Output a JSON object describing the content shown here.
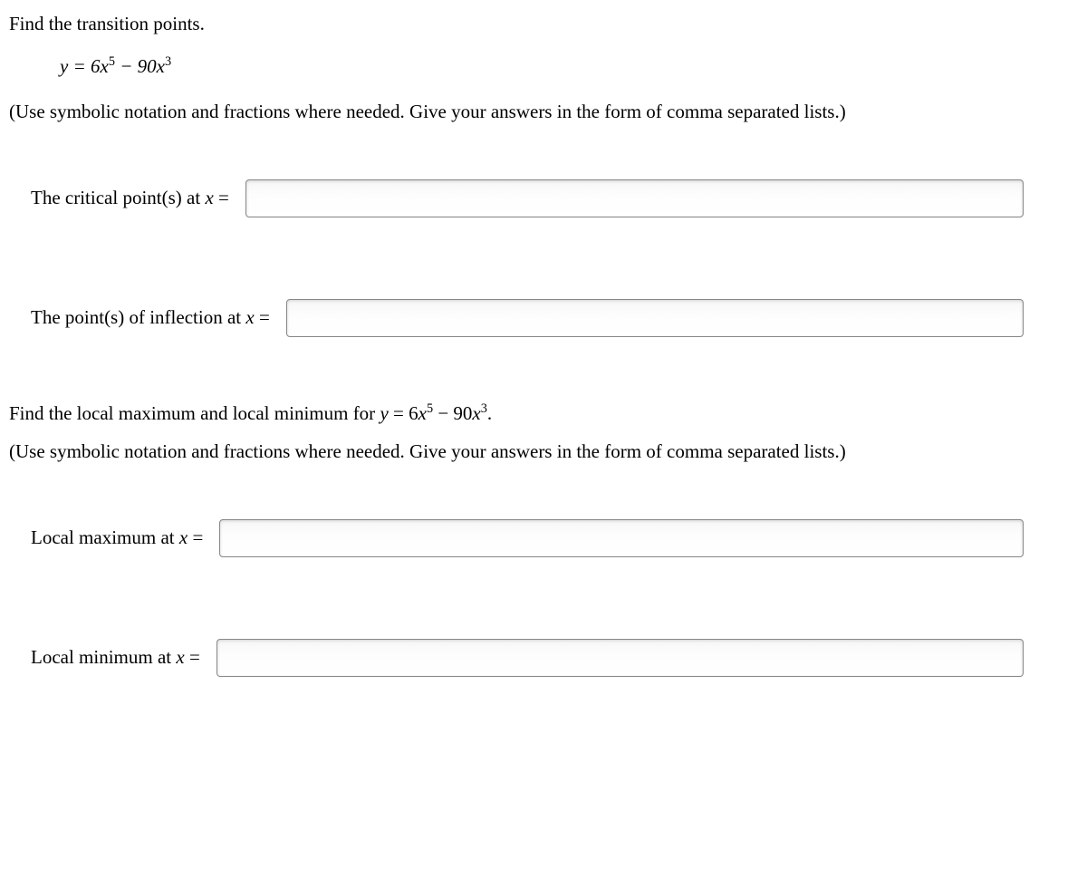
{
  "section1": {
    "prompt": "Find the transition points.",
    "equation_html": "<span class='math-var'>y</span> = 6<span class='math-var'>x</span><sup>5</sup> − 90<span class='math-var'>x</span><sup>3</sup>",
    "instruction": "(Use symbolic notation and fractions where needed. Give your answers in the form of comma separated lists.)",
    "rows": [
      {
        "label_html": "The critical point(s) at <span class='math-var'>x</span> =",
        "name": "critical-points-input"
      },
      {
        "label_html": "The point(s) of inflection at <span class='math-var'>x</span> =",
        "name": "inflection-points-input"
      }
    ]
  },
  "section2": {
    "prompt_html": "Find the local maximum and local minimum for <span class='eq-wrap'><span class='math-var'>y</span> = 6<span class='math-var'>x</span><sup>5</sup> − 90<span class='math-var'>x</span><sup>3</sup>.</span>",
    "instruction": "(Use symbolic notation and fractions where needed. Give your answers in the form of comma separated lists.)",
    "rows": [
      {
        "label_html": "Local maximum at <span class='math-var'>x</span> =",
        "name": "local-maximum-input"
      },
      {
        "label_html": "Local minimum at <span class='math-var'>x</span> =",
        "name": "local-minimum-input"
      }
    ]
  },
  "input_style": {
    "border_color": "#888888",
    "background_gradient_top": "#f6f6f6",
    "background_gradient_bottom": "#ffffff"
  }
}
